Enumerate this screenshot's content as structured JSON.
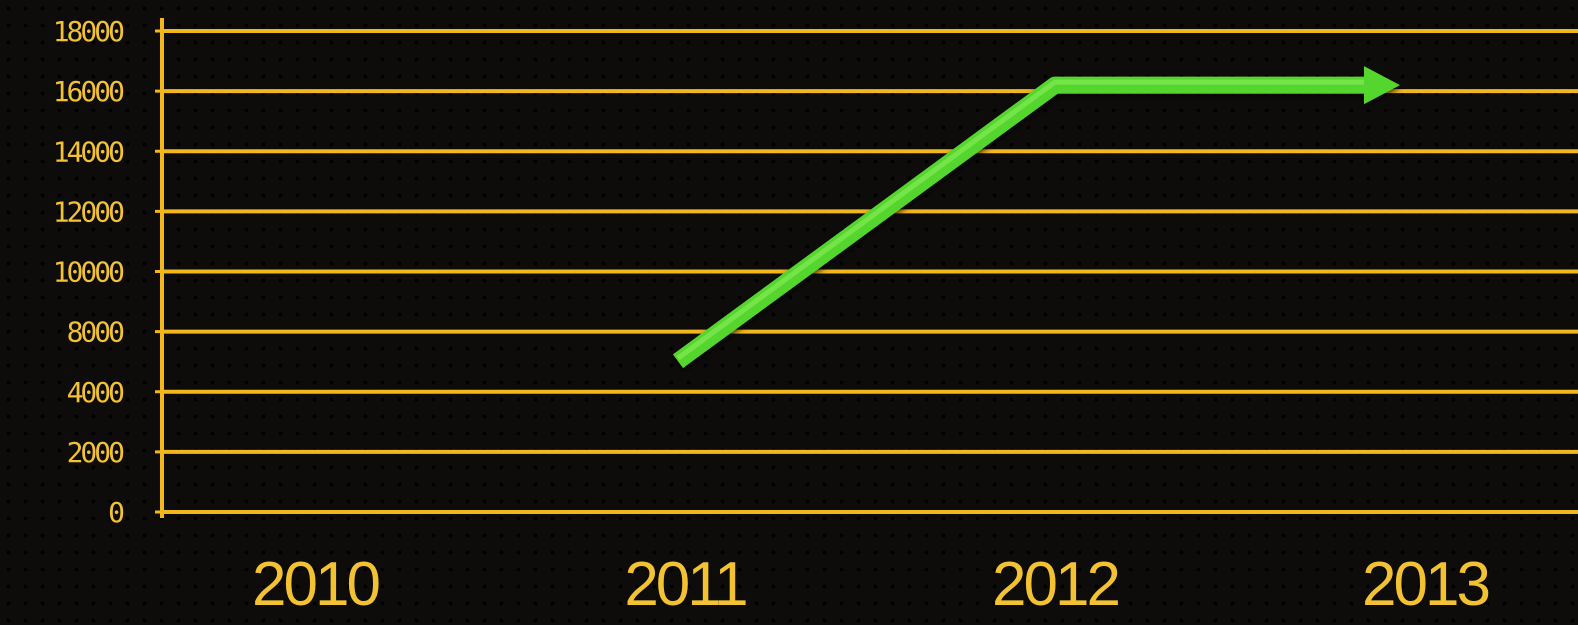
{
  "colors": {
    "background": "#0d0c0a",
    "grid": "#f2b81b",
    "axis": "#f2b81b",
    "tick_text": "#f2c232",
    "line": "#55d62f",
    "line_highlight": "#8ef05c"
  },
  "chart_data": {
    "type": "line",
    "title": "",
    "xlabel": "",
    "ylabel": "",
    "categories": [
      "2010",
      "2011",
      "2012",
      "2013"
    ],
    "y_ticks": [
      0,
      2000,
      4000,
      8000,
      10000,
      12000,
      14000,
      16000,
      18000
    ],
    "grid": true,
    "legend": "none",
    "series": [
      {
        "points": [
          {
            "x": "2011",
            "y": 6500
          },
          {
            "x": "2012",
            "y": 16200
          },
          {
            "x": "2013",
            "y": 16200
          }
        ],
        "end_marker": "arrow"
      }
    ]
  }
}
